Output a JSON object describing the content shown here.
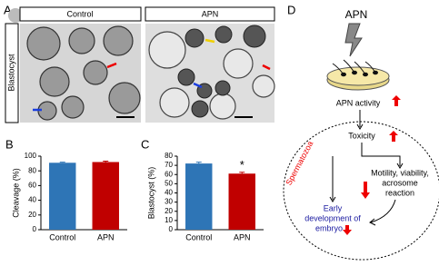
{
  "panels": {
    "a": "A",
    "b": "B",
    "c": "C",
    "d": "D"
  },
  "panel_a": {
    "columns": [
      "Control",
      "APN"
    ],
    "row_label": "Blastocyst"
  },
  "chart_data": [
    {
      "type": "bar",
      "y_label": "Cleavage (%)",
      "categories": [
        "Control",
        "APN"
      ],
      "values": [
        91,
        92
      ],
      "errors": [
        0.8,
        1.2
      ],
      "colors": [
        "#2e75b6",
        "#c00000"
      ],
      "ylim": [
        0,
        100
      ],
      "yticks": [
        0,
        20,
        40,
        60,
        80,
        100
      ]
    },
    {
      "type": "bar",
      "y_label": "Blastocyst (%)",
      "categories": [
        "Control",
        "APN"
      ],
      "values": [
        72,
        61
      ],
      "errors": [
        1.5,
        1.5
      ],
      "colors": [
        "#2e75b6",
        "#c00000"
      ],
      "ylim": [
        0,
        80
      ],
      "yticks": [
        0,
        10,
        20,
        30,
        40,
        50,
        60,
        70,
        80
      ],
      "annotation": "*"
    }
  ],
  "diagram": {
    "agent": "APN",
    "activity": "APN activity",
    "toxicity": "Toxicity",
    "region": "Spermatozoa",
    "effect": [
      "Motility, viability,",
      "acrosome",
      "reaction"
    ],
    "outcome": [
      "Early",
      "development of",
      "embryo"
    ]
  }
}
